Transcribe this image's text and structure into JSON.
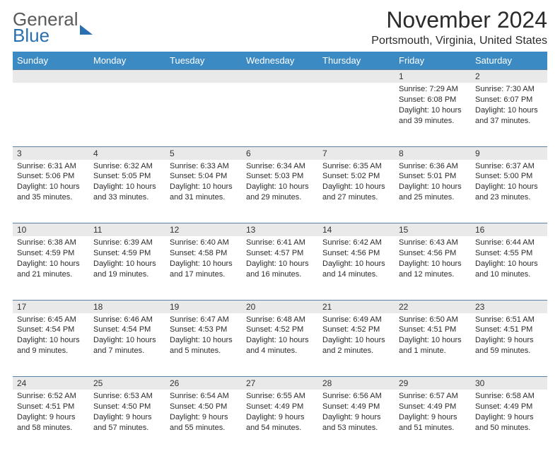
{
  "logo": {
    "line1": "General",
    "line2": "Blue"
  },
  "title": "November 2024",
  "location": "Portsmouth, Virginia, United States",
  "colors": {
    "header_bg": "#3b8ac4",
    "header_fg": "#ffffff",
    "daynum_bg": "#e9e9e9",
    "rule": "#5d81a3",
    "text": "#2b2b2b",
    "logo_gray": "#5a5a5a",
    "logo_blue": "#2a6fb0",
    "page_bg": "#ffffff"
  },
  "weekdays": [
    "Sunday",
    "Monday",
    "Tuesday",
    "Wednesday",
    "Thursday",
    "Friday",
    "Saturday"
  ],
  "weeks": [
    [
      {
        "n": "",
        "sr": "",
        "ss": "",
        "dl": ""
      },
      {
        "n": "",
        "sr": "",
        "ss": "",
        "dl": ""
      },
      {
        "n": "",
        "sr": "",
        "ss": "",
        "dl": ""
      },
      {
        "n": "",
        "sr": "",
        "ss": "",
        "dl": ""
      },
      {
        "n": "",
        "sr": "",
        "ss": "",
        "dl": ""
      },
      {
        "n": "1",
        "sr": "Sunrise: 7:29 AM",
        "ss": "Sunset: 6:08 PM",
        "dl": "Daylight: 10 hours and 39 minutes."
      },
      {
        "n": "2",
        "sr": "Sunrise: 7:30 AM",
        "ss": "Sunset: 6:07 PM",
        "dl": "Daylight: 10 hours and 37 minutes."
      }
    ],
    [
      {
        "n": "3",
        "sr": "Sunrise: 6:31 AM",
        "ss": "Sunset: 5:06 PM",
        "dl": "Daylight: 10 hours and 35 minutes."
      },
      {
        "n": "4",
        "sr": "Sunrise: 6:32 AM",
        "ss": "Sunset: 5:05 PM",
        "dl": "Daylight: 10 hours and 33 minutes."
      },
      {
        "n": "5",
        "sr": "Sunrise: 6:33 AM",
        "ss": "Sunset: 5:04 PM",
        "dl": "Daylight: 10 hours and 31 minutes."
      },
      {
        "n": "6",
        "sr": "Sunrise: 6:34 AM",
        "ss": "Sunset: 5:03 PM",
        "dl": "Daylight: 10 hours and 29 minutes."
      },
      {
        "n": "7",
        "sr": "Sunrise: 6:35 AM",
        "ss": "Sunset: 5:02 PM",
        "dl": "Daylight: 10 hours and 27 minutes."
      },
      {
        "n": "8",
        "sr": "Sunrise: 6:36 AM",
        "ss": "Sunset: 5:01 PM",
        "dl": "Daylight: 10 hours and 25 minutes."
      },
      {
        "n": "9",
        "sr": "Sunrise: 6:37 AM",
        "ss": "Sunset: 5:00 PM",
        "dl": "Daylight: 10 hours and 23 minutes."
      }
    ],
    [
      {
        "n": "10",
        "sr": "Sunrise: 6:38 AM",
        "ss": "Sunset: 4:59 PM",
        "dl": "Daylight: 10 hours and 21 minutes."
      },
      {
        "n": "11",
        "sr": "Sunrise: 6:39 AM",
        "ss": "Sunset: 4:59 PM",
        "dl": "Daylight: 10 hours and 19 minutes."
      },
      {
        "n": "12",
        "sr": "Sunrise: 6:40 AM",
        "ss": "Sunset: 4:58 PM",
        "dl": "Daylight: 10 hours and 17 minutes."
      },
      {
        "n": "13",
        "sr": "Sunrise: 6:41 AM",
        "ss": "Sunset: 4:57 PM",
        "dl": "Daylight: 10 hours and 16 minutes."
      },
      {
        "n": "14",
        "sr": "Sunrise: 6:42 AM",
        "ss": "Sunset: 4:56 PM",
        "dl": "Daylight: 10 hours and 14 minutes."
      },
      {
        "n": "15",
        "sr": "Sunrise: 6:43 AM",
        "ss": "Sunset: 4:56 PM",
        "dl": "Daylight: 10 hours and 12 minutes."
      },
      {
        "n": "16",
        "sr": "Sunrise: 6:44 AM",
        "ss": "Sunset: 4:55 PM",
        "dl": "Daylight: 10 hours and 10 minutes."
      }
    ],
    [
      {
        "n": "17",
        "sr": "Sunrise: 6:45 AM",
        "ss": "Sunset: 4:54 PM",
        "dl": "Daylight: 10 hours and 9 minutes."
      },
      {
        "n": "18",
        "sr": "Sunrise: 6:46 AM",
        "ss": "Sunset: 4:54 PM",
        "dl": "Daylight: 10 hours and 7 minutes."
      },
      {
        "n": "19",
        "sr": "Sunrise: 6:47 AM",
        "ss": "Sunset: 4:53 PM",
        "dl": "Daylight: 10 hours and 5 minutes."
      },
      {
        "n": "20",
        "sr": "Sunrise: 6:48 AM",
        "ss": "Sunset: 4:52 PM",
        "dl": "Daylight: 10 hours and 4 minutes."
      },
      {
        "n": "21",
        "sr": "Sunrise: 6:49 AM",
        "ss": "Sunset: 4:52 PM",
        "dl": "Daylight: 10 hours and 2 minutes."
      },
      {
        "n": "22",
        "sr": "Sunrise: 6:50 AM",
        "ss": "Sunset: 4:51 PM",
        "dl": "Daylight: 10 hours and 1 minute."
      },
      {
        "n": "23",
        "sr": "Sunrise: 6:51 AM",
        "ss": "Sunset: 4:51 PM",
        "dl": "Daylight: 9 hours and 59 minutes."
      }
    ],
    [
      {
        "n": "24",
        "sr": "Sunrise: 6:52 AM",
        "ss": "Sunset: 4:51 PM",
        "dl": "Daylight: 9 hours and 58 minutes."
      },
      {
        "n": "25",
        "sr": "Sunrise: 6:53 AM",
        "ss": "Sunset: 4:50 PM",
        "dl": "Daylight: 9 hours and 57 minutes."
      },
      {
        "n": "26",
        "sr": "Sunrise: 6:54 AM",
        "ss": "Sunset: 4:50 PM",
        "dl": "Daylight: 9 hours and 55 minutes."
      },
      {
        "n": "27",
        "sr": "Sunrise: 6:55 AM",
        "ss": "Sunset: 4:49 PM",
        "dl": "Daylight: 9 hours and 54 minutes."
      },
      {
        "n": "28",
        "sr": "Sunrise: 6:56 AM",
        "ss": "Sunset: 4:49 PM",
        "dl": "Daylight: 9 hours and 53 minutes."
      },
      {
        "n": "29",
        "sr": "Sunrise: 6:57 AM",
        "ss": "Sunset: 4:49 PM",
        "dl": "Daylight: 9 hours and 51 minutes."
      },
      {
        "n": "30",
        "sr": "Sunrise: 6:58 AM",
        "ss": "Sunset: 4:49 PM",
        "dl": "Daylight: 9 hours and 50 minutes."
      }
    ]
  ]
}
